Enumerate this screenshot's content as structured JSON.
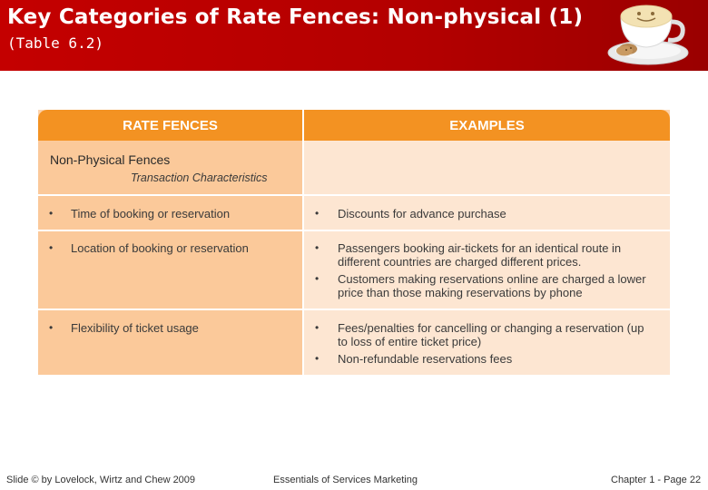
{
  "slide": {
    "title": "Key Categories of Rate Fences: Non-physical (1)",
    "subtitle": "(Table 6.2)"
  },
  "table": {
    "headers": [
      "RATE FENCES",
      "EXAMPLES"
    ],
    "category": {
      "title": "Non-Physical Fences",
      "subtitle": "Transaction Characteristics"
    },
    "rows": [
      {
        "fence": "Time of booking or reservation",
        "examples": [
          "Discounts for advance purchase"
        ]
      },
      {
        "fence": "Location of booking or reservation",
        "examples": [
          "Passengers booking air-tickets for an identical route in different countries are charged different prices.",
          "Customers making reservations online are charged a lower price than those making reservations by phone"
        ]
      },
      {
        "fence": "Flexibility of ticket usage",
        "examples": [
          "Fees/penalties for cancelling or changing a reservation (up to loss of entire ticket price)",
          "Non-refundable reservations fees"
        ]
      }
    ]
  },
  "footer": {
    "left": "Slide © by Lovelock, Wirtz and Chew 2009",
    "center": "Essentials of Services Marketing",
    "right": "Chapter 1 - Page 22"
  },
  "colors": {
    "header_bg": "#c40000",
    "table_header": "#f39222",
    "left_cell": "#fbc99a",
    "right_cell": "#fde6d2"
  },
  "icons": {
    "logo": "coffee-cup-icon"
  }
}
